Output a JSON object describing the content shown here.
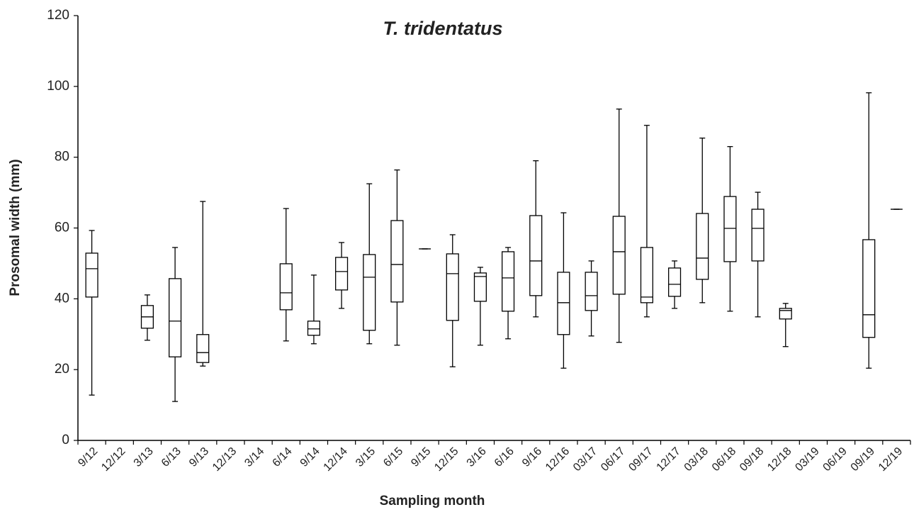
{
  "chart_data": {
    "type": "box",
    "title": "T. tridentatus",
    "x_label": "Sampling month",
    "y_label": "Prosomal width (mm)",
    "categories": [
      "9/12",
      "12/12",
      "3/13",
      "6/13",
      "9/13",
      "12/13",
      "3/14",
      "6/14",
      "9/14",
      "12/14",
      "3/15",
      "6/15",
      "9/15",
      "12/15",
      "3/16",
      "6/16",
      "9/16",
      "12/16",
      "03/17",
      "06/17",
      "09/17",
      "12/17",
      "03/18",
      "06/18",
      "09/18",
      "12/18",
      "03/19",
      "06/19",
      "09/19",
      "12/19"
    ],
    "min": [
      12.8,
      null,
      28.3,
      11.0,
      21.0,
      null,
      null,
      28.1,
      27.3,
      37.3,
      27.3,
      26.9,
      54.1,
      20.8,
      26.9,
      28.7,
      34.9,
      20.4,
      29.5,
      27.7,
      34.9,
      37.3,
      38.9,
      36.5,
      34.9,
      26.5,
      null,
      null,
      20.4,
      65.3
    ],
    "q1": [
      40.5,
      null,
      31.7,
      23.6,
      22.0,
      null,
      null,
      36.9,
      29.7,
      42.5,
      31.1,
      39.1,
      54.1,
      33.9,
      39.3,
      36.5,
      40.9,
      29.9,
      36.7,
      41.3,
      38.9,
      40.7,
      45.5,
      50.5,
      50.7,
      34.3,
      null,
      null,
      29.1,
      65.3
    ],
    "median": [
      48.5,
      null,
      34.9,
      33.7,
      24.8,
      null,
      null,
      41.7,
      31.5,
      47.7,
      46.1,
      49.7,
      54.1,
      47.1,
      46.3,
      45.9,
      50.7,
      38.9,
      40.9,
      53.3,
      40.5,
      44.1,
      51.5,
      59.9,
      59.9,
      36.7,
      null,
      null,
      35.5,
      65.3
    ],
    "q3": [
      52.9,
      null,
      38.1,
      45.7,
      29.9,
      null,
      null,
      49.9,
      33.7,
      51.7,
      52.5,
      62.1,
      54.1,
      52.7,
      47.3,
      53.3,
      63.5,
      47.5,
      47.5,
      63.3,
      54.5,
      48.7,
      64.1,
      68.9,
      65.3,
      37.3,
      null,
      null,
      56.7,
      65.3
    ],
    "max": [
      59.3,
      null,
      41.1,
      54.5,
      67.5,
      null,
      null,
      65.5,
      46.7,
      55.9,
      72.5,
      76.4,
      54.1,
      58.1,
      48.9,
      54.5,
      79.0,
      64.3,
      50.7,
      93.6,
      89.0,
      50.7,
      85.4,
      83.0,
      70.1,
      38.7,
      null,
      null,
      98.2,
      65.3
    ],
    "color": "#000000",
    "ylim": [
      0,
      120
    ],
    "yticks": [
      0,
      20,
      40,
      60,
      80,
      100,
      120
    ]
  }
}
